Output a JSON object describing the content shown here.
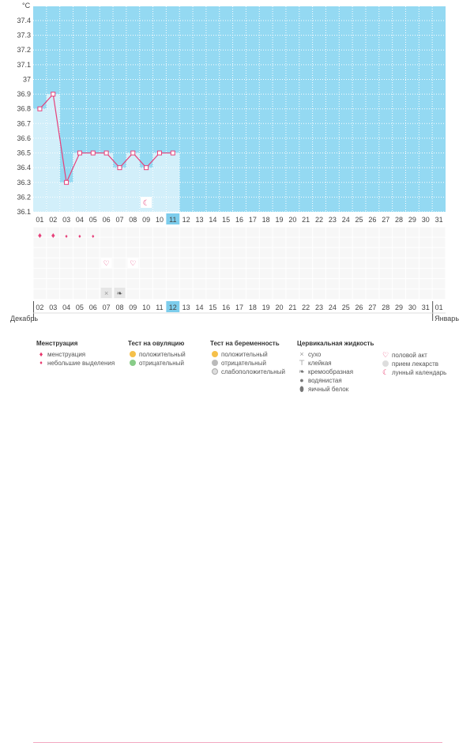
{
  "chart_data": {
    "type": "line",
    "unit_label": "°C",
    "y_ticks": [
      "37.4",
      "37.3",
      "37.2",
      "37.1",
      "37",
      "36.9",
      "36.8",
      "36.7",
      "36.6",
      "36.5",
      "36.4",
      "36.3",
      "36.2",
      "36.1"
    ],
    "ylim": [
      36.1,
      37.45
    ],
    "days": [
      "01",
      "02",
      "03",
      "04",
      "05",
      "06",
      "07",
      "08",
      "09",
      "10",
      "11",
      "12",
      "13",
      "14",
      "15",
      "16",
      "17",
      "18",
      "19",
      "20",
      "21",
      "22",
      "23",
      "24",
      "25",
      "26",
      "27",
      "28",
      "29",
      "30",
      "31"
    ],
    "highlight_day": "11",
    "series": [
      {
        "values": [
          36.8,
          36.9,
          36.3,
          36.5,
          36.5,
          36.5,
          36.4,
          36.5,
          36.4,
          36.5,
          36.5
        ]
      }
    ],
    "calendar_dates": [
      "02",
      "03",
      "04",
      "05",
      "06",
      "07",
      "08",
      "09",
      "10",
      "11",
      "12",
      "13",
      "14",
      "15",
      "16",
      "17",
      "18",
      "19",
      "20",
      "21",
      "22",
      "23",
      "24",
      "25",
      "26",
      "27",
      "28",
      "29",
      "30",
      "31",
      "01"
    ],
    "red_dates": [
      "02",
      "08",
      "09",
      "15",
      "16",
      "22",
      "23",
      "29",
      "30"
    ],
    "highlight_date": "12",
    "month_left": "Декабрь",
    "month_right": "Январь",
    "menstruation_row": [
      "large",
      "large",
      "small",
      "small",
      "small"
    ],
    "lunar_marker_day": "09",
    "intercourse_days": [
      "06",
      "08"
    ],
    "cervical_marks": [
      {
        "day": "06",
        "kind": "dry"
      },
      {
        "day": "07",
        "kind": "creamy"
      }
    ]
  },
  "legend": {
    "menstruation": {
      "title": "Менструация",
      "items": [
        "менструация",
        "небольшие выделения"
      ]
    },
    "ovulation": {
      "title": "Тест на овуляцию",
      "items": [
        "положительный",
        "отрицательный"
      ]
    },
    "pregnancy": {
      "title": "Тест на беременность",
      "items": [
        "положительный",
        "отрицательный",
        "слабоположительный"
      ]
    },
    "cervical": {
      "title": "Цервикальная жидкость",
      "items": [
        "сухо",
        "клейкая",
        "кремообразная",
        "водянистая",
        "яичный белок"
      ]
    },
    "other": {
      "items": [
        "половой акт",
        "прием лекарств",
        "лунный календарь"
      ]
    }
  },
  "colors": {
    "chart_bg": "#94d9f2",
    "bar_fill": "#d2effa",
    "line": "#e6407a",
    "grid": "#ffffff",
    "highlight": "#7dcdec"
  }
}
